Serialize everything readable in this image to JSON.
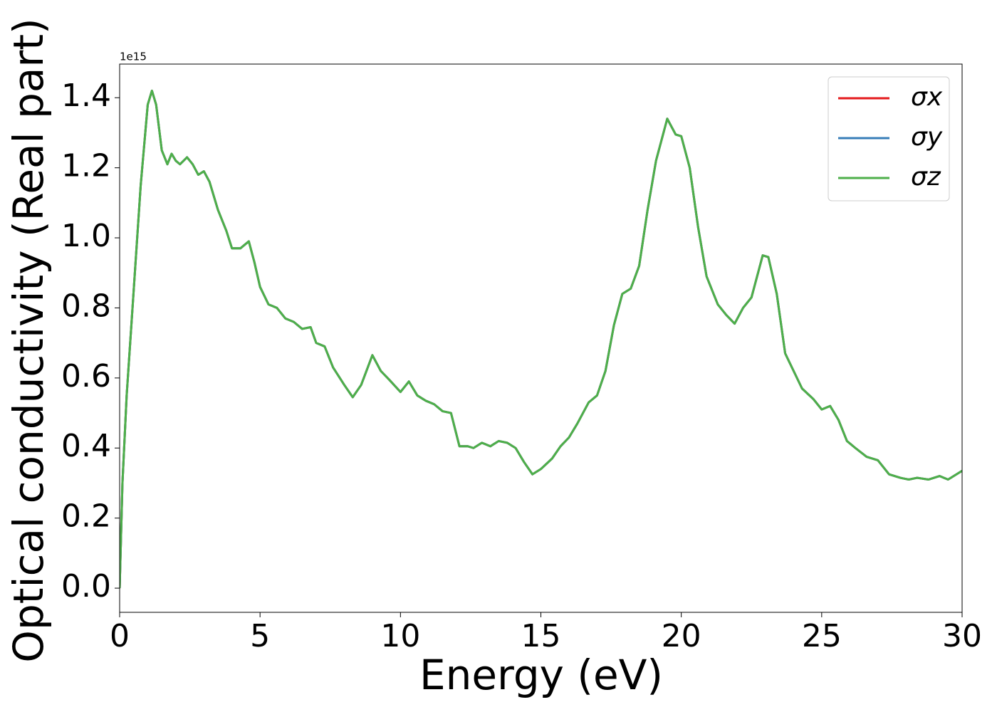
{
  "chart_data": {
    "type": "line",
    "xlabel": "Energy (eV)",
    "ylabel": "Optical conductivity (Real part)",
    "y_offset_label": "1e15",
    "x": [
      0,
      0.1,
      0.25,
      0.5,
      0.75,
      1.0,
      1.15,
      1.3,
      1.5,
      1.7,
      1.85,
      2.0,
      2.15,
      2.4,
      2.6,
      2.8,
      3.0,
      3.2,
      3.5,
      3.8,
      4.0,
      4.3,
      4.6,
      4.8,
      5.0,
      5.3,
      5.6,
      5.9,
      6.2,
      6.5,
      6.8,
      7.0,
      7.3,
      7.6,
      8.0,
      8.3,
      8.6,
      9.0,
      9.3,
      9.6,
      10.0,
      10.3,
      10.6,
      10.9,
      11.2,
      11.5,
      11.8,
      12.1,
      12.4,
      12.6,
      12.9,
      13.2,
      13.5,
      13.8,
      14.1,
      14.4,
      14.7,
      15.0,
      15.4,
      15.7,
      16.0,
      16.3,
      16.7,
      17.0,
      17.3,
      17.6,
      17.9,
      18.2,
      18.5,
      18.8,
      19.1,
      19.5,
      19.8,
      20.0,
      20.3,
      20.6,
      20.9,
      21.3,
      21.6,
      21.9,
      22.2,
      22.5,
      22.9,
      23.1,
      23.4,
      23.7,
      24.0,
      24.3,
      24.7,
      25.0,
      25.3,
      25.6,
      25.9,
      26.2,
      26.6,
      27.0,
      27.4,
      27.8,
      28.1,
      28.4,
      28.8,
      29.2,
      29.5,
      30.0
    ],
    "series": [
      {
        "name": "σx",
        "color": "#e41a1c",
        "values": [
          0.0,
          0.3,
          0.55,
          0.85,
          1.15,
          1.38,
          1.42,
          1.38,
          1.25,
          1.21,
          1.24,
          1.22,
          1.21,
          1.23,
          1.21,
          1.18,
          1.19,
          1.16,
          1.08,
          1.02,
          0.97,
          0.97,
          0.99,
          0.93,
          0.86,
          0.81,
          0.8,
          0.77,
          0.76,
          0.74,
          0.745,
          0.7,
          0.69,
          0.63,
          0.58,
          0.545,
          0.58,
          0.665,
          0.62,
          0.595,
          0.56,
          0.59,
          0.55,
          0.535,
          0.525,
          0.505,
          0.5,
          0.405,
          0.405,
          0.4,
          0.415,
          0.405,
          0.42,
          0.415,
          0.4,
          0.36,
          0.325,
          0.34,
          0.37,
          0.405,
          0.43,
          0.47,
          0.53,
          0.55,
          0.62,
          0.75,
          0.84,
          0.855,
          0.92,
          1.08,
          1.22,
          1.34,
          1.295,
          1.29,
          1.2,
          1.03,
          0.89,
          0.81,
          0.78,
          0.755,
          0.8,
          0.83,
          0.95,
          0.945,
          0.84,
          0.67,
          0.62,
          0.57,
          0.54,
          0.51,
          0.52,
          0.48,
          0.42,
          0.4,
          0.375,
          0.365,
          0.325,
          0.315,
          0.31,
          0.315,
          0.31,
          0.32,
          0.31,
          0.335
        ]
      },
      {
        "name": "σy",
        "color": "#377eb8",
        "values": [
          0.0,
          0.3,
          0.55,
          0.85,
          1.15,
          1.38,
          1.42,
          1.38,
          1.25,
          1.21,
          1.24,
          1.22,
          1.21,
          1.23,
          1.21,
          1.18,
          1.19,
          1.16,
          1.08,
          1.02,
          0.97,
          0.97,
          0.99,
          0.93,
          0.86,
          0.81,
          0.8,
          0.77,
          0.76,
          0.74,
          0.745,
          0.7,
          0.69,
          0.63,
          0.58,
          0.545,
          0.58,
          0.665,
          0.62,
          0.595,
          0.56,
          0.59,
          0.55,
          0.535,
          0.525,
          0.505,
          0.5,
          0.405,
          0.405,
          0.4,
          0.415,
          0.405,
          0.42,
          0.415,
          0.4,
          0.36,
          0.325,
          0.34,
          0.37,
          0.405,
          0.43,
          0.47,
          0.53,
          0.55,
          0.62,
          0.75,
          0.84,
          0.855,
          0.92,
          1.08,
          1.22,
          1.34,
          1.295,
          1.29,
          1.2,
          1.03,
          0.89,
          0.81,
          0.78,
          0.755,
          0.8,
          0.83,
          0.95,
          0.945,
          0.84,
          0.67,
          0.62,
          0.57,
          0.54,
          0.51,
          0.52,
          0.48,
          0.42,
          0.4,
          0.375,
          0.365,
          0.325,
          0.315,
          0.31,
          0.315,
          0.31,
          0.32,
          0.31,
          0.335
        ]
      },
      {
        "name": "σz",
        "color": "#4daf4a",
        "values": [
          0.0,
          0.3,
          0.55,
          0.85,
          1.15,
          1.38,
          1.42,
          1.38,
          1.25,
          1.21,
          1.24,
          1.22,
          1.21,
          1.23,
          1.21,
          1.18,
          1.19,
          1.16,
          1.08,
          1.02,
          0.97,
          0.97,
          0.99,
          0.93,
          0.86,
          0.81,
          0.8,
          0.77,
          0.76,
          0.74,
          0.745,
          0.7,
          0.69,
          0.63,
          0.58,
          0.545,
          0.58,
          0.665,
          0.62,
          0.595,
          0.56,
          0.59,
          0.55,
          0.535,
          0.525,
          0.505,
          0.5,
          0.405,
          0.405,
          0.4,
          0.415,
          0.405,
          0.42,
          0.415,
          0.4,
          0.36,
          0.325,
          0.34,
          0.37,
          0.405,
          0.43,
          0.47,
          0.53,
          0.55,
          0.62,
          0.75,
          0.84,
          0.855,
          0.92,
          1.08,
          1.22,
          1.34,
          1.295,
          1.29,
          1.2,
          1.03,
          0.89,
          0.81,
          0.78,
          0.755,
          0.8,
          0.83,
          0.95,
          0.945,
          0.84,
          0.67,
          0.62,
          0.57,
          0.54,
          0.51,
          0.52,
          0.48,
          0.42,
          0.4,
          0.375,
          0.365,
          0.325,
          0.315,
          0.31,
          0.315,
          0.31,
          0.32,
          0.31,
          0.335
        ]
      }
    ],
    "xlim": [
      0,
      30
    ],
    "xticks": [
      0,
      5,
      10,
      15,
      20,
      25,
      30
    ],
    "ylim": [
      -0.069,
      1.496
    ],
    "yticks": [
      {
        "value": 0,
        "label": "0.0"
      },
      0.2,
      0.4,
      0.6,
      0.8,
      {
        "value": 1,
        "label": "1.0"
      },
      1.2,
      1.4
    ],
    "legend": "upper right",
    "grid": false
  }
}
